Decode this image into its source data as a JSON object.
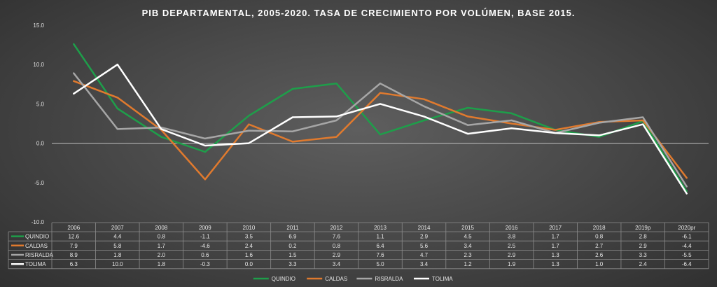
{
  "chart_data": {
    "type": "line",
    "title": "PIB DEPARTAMENTAL, 2005-2020. TASA DE CRECIMIENTO POR VOLÚMEN, BASE 2015.",
    "categories": [
      "2006",
      "2007",
      "2008",
      "2009",
      "2010",
      "2011",
      "2012",
      "2013",
      "2014",
      "2015",
      "2016",
      "2017",
      "2018",
      "2019p",
      "2020pr"
    ],
    "ylim": [
      -10,
      15
    ],
    "yticks": [
      "15.0",
      "10.0",
      "5.0",
      "0.0",
      "-5.0",
      "-10.0"
    ],
    "grid": false,
    "legend_position": "bottom",
    "series": [
      {
        "name": "QUINDIO",
        "color": "#1e9e4a",
        "values": [
          12.6,
          4.4,
          0.8,
          -1.1,
          3.5,
          6.9,
          7.6,
          1.1,
          2.9,
          4.5,
          3.8,
          1.7,
          0.8,
          2.8,
          -6.1
        ],
        "labels": [
          "12.6",
          "4.4",
          "0.8",
          "-1.1",
          "3.5",
          "6.9",
          "7.6",
          "1.1",
          "2.9",
          "4.5",
          "3.8",
          "1.7",
          "0.8",
          "2.8",
          "-6.1"
        ]
      },
      {
        "name": "CALDAS",
        "color": "#e07a2e",
        "values": [
          7.9,
          5.8,
          1.7,
          -4.6,
          2.4,
          0.2,
          0.8,
          6.4,
          5.6,
          3.4,
          2.5,
          1.7,
          2.7,
          2.9,
          -4.4
        ],
        "labels": [
          "7.9",
          "5.8",
          "1.7",
          "-4.6",
          "2.4",
          "0.2",
          "0.8",
          "6.4",
          "5.6",
          "3.4",
          "2.5",
          "1.7",
          "2.7",
          "2.9",
          "-4.4"
        ]
      },
      {
        "name": "RISRALDA",
        "color": "#a6a6a6",
        "values": [
          8.9,
          1.8,
          2.0,
          0.6,
          1.6,
          1.5,
          2.9,
          7.6,
          4.7,
          2.3,
          2.9,
          1.3,
          2.6,
          3.3,
          -5.5
        ],
        "labels": [
          "8.9",
          "1.8",
          "2.0",
          "0.6",
          "1.6",
          "1.5",
          "2.9",
          "7.6",
          "4.7",
          "2.3",
          "2.9",
          "1.3",
          "2.6",
          "3.3",
          "-5.5"
        ]
      },
      {
        "name": "TOLIMA",
        "color": "#ffffff",
        "values": [
          6.3,
          10.0,
          1.8,
          -0.3,
          0.0,
          3.3,
          3.4,
          5.0,
          3.4,
          1.2,
          1.9,
          1.3,
          1.0,
          2.4,
          -6.4
        ],
        "labels": [
          "6.3",
          "10.0",
          "1.8",
          "-0.3",
          "0.0",
          "3.3",
          "3.4",
          "5.0",
          "3.4",
          "1.2",
          "1.9",
          "1.3",
          "1.0",
          "2.4",
          "-6.4"
        ]
      }
    ]
  }
}
